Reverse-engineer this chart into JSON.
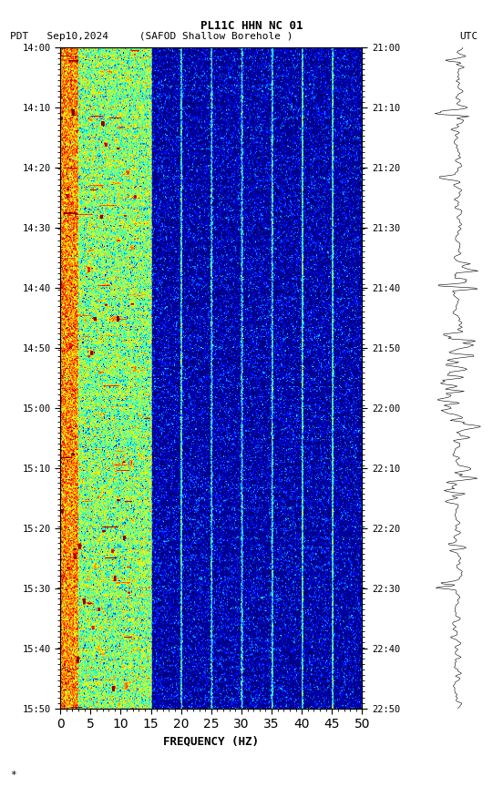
{
  "title_line1": "PL11C HHN NC 01",
  "title_line2_left": "PDT   Sep10,2024     (SAFOD Shallow Borehole )",
  "title_line2_right": "UTC",
  "left_time_labels": [
    "14:00",
    "14:10",
    "14:20",
    "14:30",
    "14:40",
    "14:50",
    "15:00",
    "15:10",
    "15:20",
    "15:30",
    "15:40",
    "15:50"
  ],
  "right_time_labels": [
    "21:00",
    "21:10",
    "21:20",
    "21:30",
    "21:40",
    "21:50",
    "22:00",
    "22:10",
    "22:20",
    "22:30",
    "22:40",
    "22:50"
  ],
  "freq_min": 0,
  "freq_max": 50,
  "freq_ticks": [
    0,
    5,
    10,
    15,
    20,
    25,
    30,
    35,
    40,
    45,
    50
  ],
  "xlabel": "FREQUENCY (HZ)",
  "n_times": 660,
  "n_freqs": 500,
  "seed": 42,
  "vertical_lines_freq": [
    15,
    20,
    25,
    30,
    35,
    40,
    45
  ],
  "hot_band_freq_max": 15,
  "background_color": "#ffffff",
  "colormap": "jet",
  "figsize": [
    5.52,
    8.64
  ],
  "dpi": 100
}
